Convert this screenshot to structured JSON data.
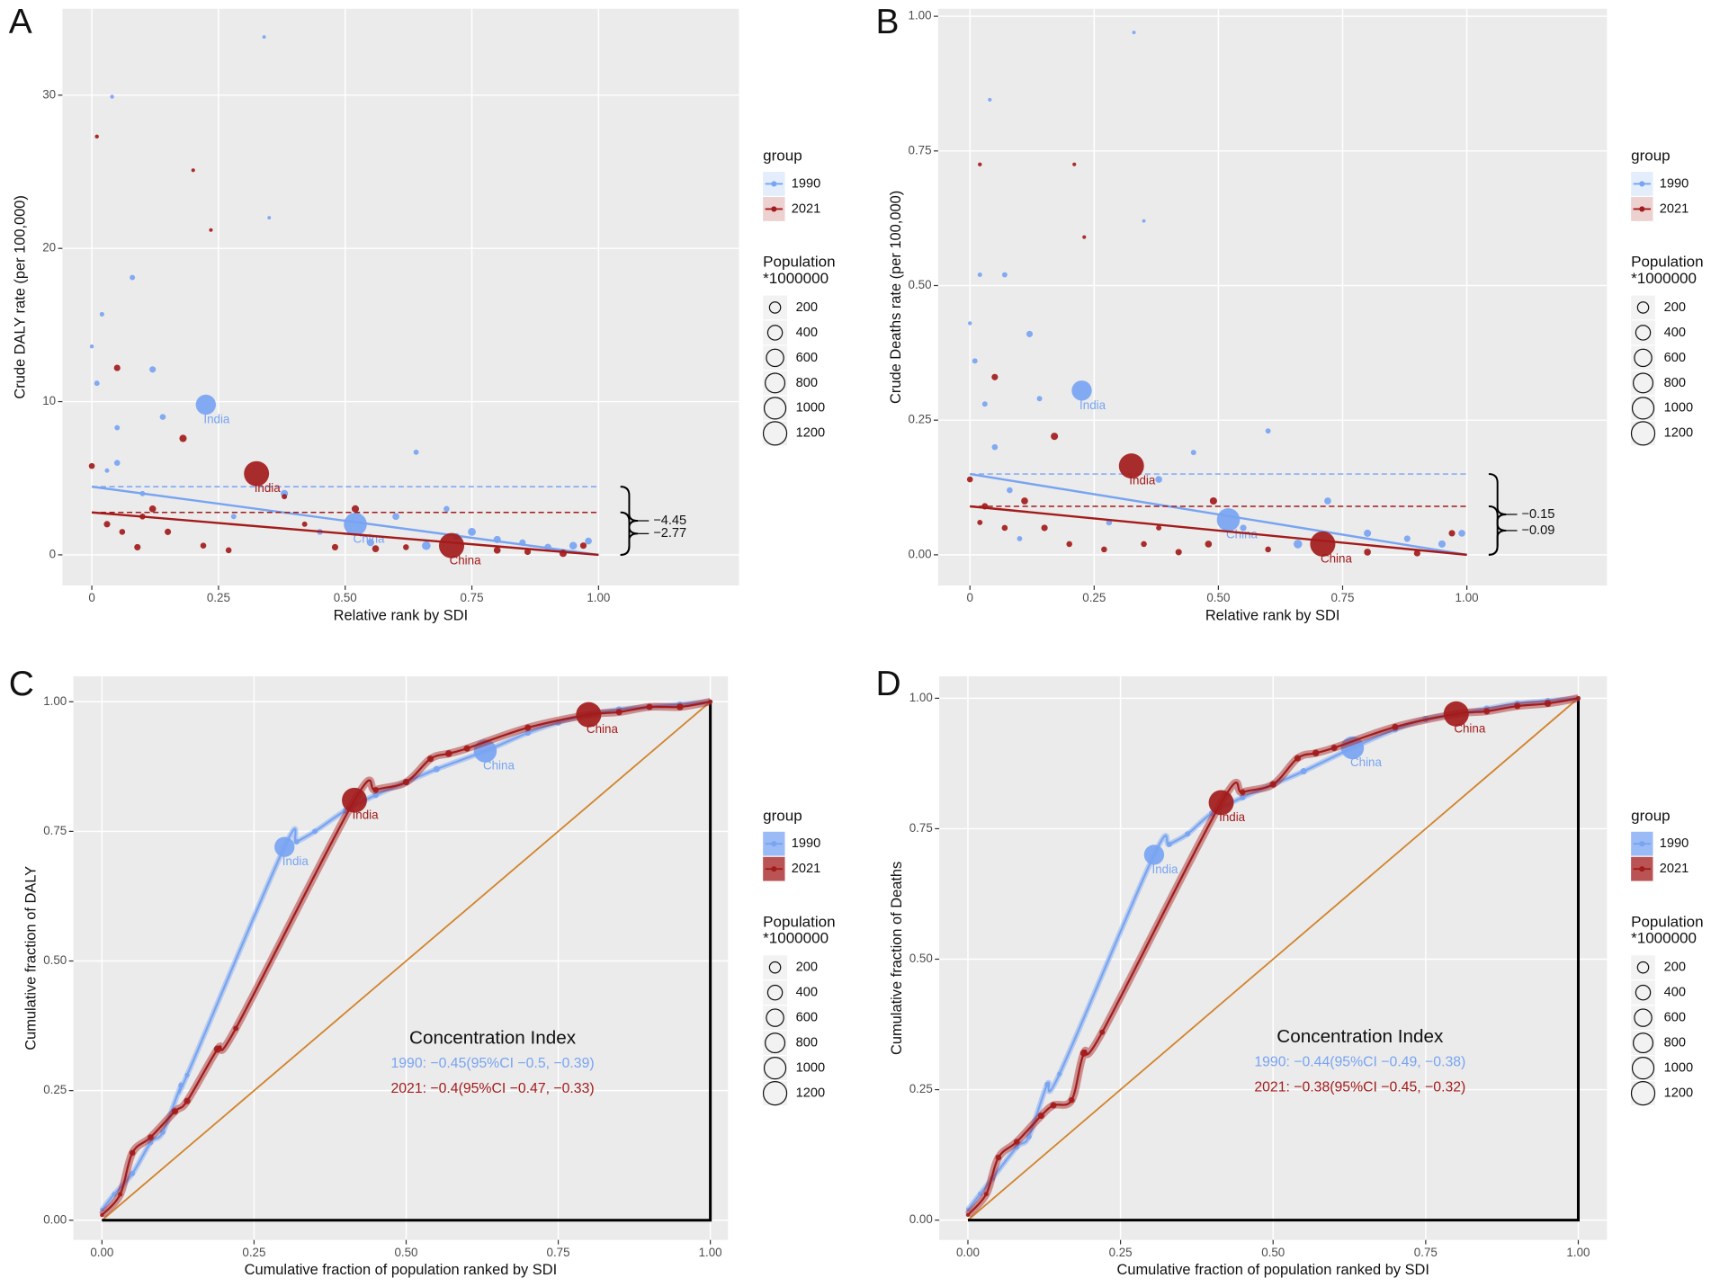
{
  "chart_data": [
    {
      "type": "scatter",
      "panel_label": "A",
      "ylabel": "Crude DALY rate (per 100,000)",
      "xlabel": "Relative rank by SDI",
      "xlim": [
        -0.058,
        1.277
      ],
      "ylim": [
        -2,
        35.64
      ],
      "xticks": [
        0,
        0.25,
        {
          "value": 0.5,
          "label": "0.50"
        },
        0.75,
        {
          "value": 1,
          "label": "1.00"
        }
      ],
      "yticks": [
        0,
        10,
        20,
        30
      ],
      "grid": true,
      "legend_title": "group",
      "size_legend": {
        "title": [
          "Population",
          "*1000000"
        ],
        "values": [
          200,
          400,
          600,
          800,
          1000,
          1200
        ]
      },
      "slope_index": {
        "values": [
          -4.45,
          -2.77
        ],
        "value_labels": [
          "−4.45",
          "−2.77"
        ]
      },
      "series": [
        {
          "name": "1990",
          "color": "#78a4f2",
          "x": [
            0.0,
            0.01,
            0.02,
            0.03,
            0.04,
            0.05,
            0.05,
            0.08,
            0.1,
            0.12,
            0.14,
            0.225,
            0.28,
            0.34,
            0.35,
            0.38,
            0.45,
            0.52,
            0.55,
            0.6,
            0.64,
            0.66,
            0.7,
            0.72,
            0.75,
            0.8,
            0.85,
            0.9,
            0.95,
            0.98
          ],
          "values": [
            13.6,
            11.2,
            15.7,
            5.5,
            29.9,
            8.3,
            6.0,
            18.1,
            4.0,
            12.1,
            9.0,
            9.8,
            2.5,
            33.8,
            22.0,
            4.0,
            1.5,
            2.0,
            0.8,
            2.5,
            6.7,
            0.6,
            3.0,
            1.2,
            1.5,
            1.0,
            0.8,
            0.5,
            0.6,
            0.9
          ],
          "size": [
            5,
            20,
            10,
            10,
            5,
            20,
            30,
            20,
            20,
            40,
            30,
            850,
            20,
            2,
            2,
            60,
            30,
            1150,
            60,
            50,
            20,
            100,
            30,
            40,
            80,
            60,
            40,
            50,
            70,
            50
          ],
          "point_labels": [
            null,
            null,
            null,
            null,
            null,
            null,
            null,
            null,
            null,
            null,
            null,
            "India",
            null,
            null,
            null,
            null,
            null,
            "China",
            null,
            null,
            null,
            null,
            null,
            null,
            null,
            null,
            null,
            null,
            null,
            null
          ]
        },
        {
          "name": "2021",
          "color": "#a31b1b",
          "x": [
            0.0,
            0.01,
            0.03,
            0.05,
            0.06,
            0.09,
            0.1,
            0.12,
            0.15,
            0.18,
            0.2,
            0.22,
            0.235,
            0.27,
            0.325,
            0.38,
            0.42,
            0.48,
            0.52,
            0.56,
            0.62,
            0.71,
            0.8,
            0.86,
            0.93,
            0.97
          ],
          "values": [
            5.8,
            27.3,
            2.0,
            12.2,
            1.5,
            0.5,
            2.5,
            3.0,
            1.5,
            7.6,
            25.1,
            0.6,
            21.2,
            0.3,
            5.3,
            3.8,
            2.0,
            0.5,
            3.0,
            0.4,
            0.5,
            0.6,
            0.3,
            0.2,
            0.1,
            0.6
          ],
          "size": [
            30,
            5,
            40,
            40,
            30,
            40,
            30,
            50,
            40,
            60,
            3,
            30,
            3,
            30,
            1400,
            20,
            20,
            40,
            60,
            50,
            30,
            1420,
            50,
            40,
            60,
            40
          ],
          "point_labels": [
            null,
            null,
            null,
            null,
            null,
            null,
            null,
            null,
            null,
            null,
            null,
            null,
            null,
            null,
            "India",
            null,
            null,
            null,
            null,
            null,
            null,
            "China",
            null,
            null,
            null,
            null
          ]
        }
      ]
    },
    {
      "type": "scatter",
      "panel_label": "B",
      "ylabel": "Crude Deaths rate (per 100,000)",
      "xlabel": "Relative rank by SDI",
      "xlim": [
        -0.064,
        1.282
      ],
      "ylim": [
        -0.057,
        1.014
      ],
      "xticks": [
        0,
        0.25,
        {
          "value": 0.5,
          "label": "0.50"
        },
        0.75,
        {
          "value": 1,
          "label": "1.00"
        }
      ],
      "yticks": [
        {
          "value": 0,
          "label": "0.00"
        },
        0.25,
        {
          "value": 0.5,
          "label": "0.50"
        },
        0.75,
        {
          "value": 1,
          "label": "1.00"
        }
      ],
      "grid": true,
      "legend_title": "group",
      "size_legend": {
        "title": [
          "Population",
          "*1000000"
        ],
        "values": [
          200,
          400,
          600,
          800,
          1000,
          1200
        ]
      },
      "slope_index": {
        "values": [
          -0.15,
          -0.09
        ],
        "value_labels": [
          "−0.15",
          "−0.09"
        ]
      },
      "series": [
        {
          "name": "1990",
          "color": "#78a4f2",
          "x": [
            0.0,
            0.01,
            0.02,
            0.03,
            0.04,
            0.05,
            0.07,
            0.08,
            0.1,
            0.12,
            0.14,
            0.225,
            0.28,
            0.33,
            0.35,
            0.38,
            0.45,
            0.52,
            0.55,
            0.6,
            0.66,
            0.72,
            0.8,
            0.88,
            0.95,
            0.99
          ],
          "values": [
            0.43,
            0.36,
            0.52,
            0.28,
            0.845,
            0.2,
            0.52,
            0.12,
            0.03,
            0.41,
            0.29,
            0.305,
            0.06,
            0.97,
            0.62,
            0.14,
            0.19,
            0.065,
            0.05,
            0.23,
            0.02,
            0.1,
            0.04,
            0.03,
            0.02,
            0.04
          ],
          "size": [
            5,
            20,
            10,
            20,
            3,
            30,
            20,
            30,
            20,
            40,
            20,
            850,
            30,
            2,
            2,
            50,
            20,
            1150,
            40,
            20,
            100,
            50,
            60,
            40,
            60,
            50
          ],
          "point_labels": [
            null,
            null,
            null,
            null,
            null,
            null,
            null,
            null,
            null,
            null,
            null,
            "India",
            null,
            null,
            null,
            null,
            null,
            "China",
            null,
            null,
            null,
            null,
            null,
            null,
            null,
            null
          ]
        },
        {
          "name": "2021",
          "color": "#a31b1b",
          "x": [
            0.0,
            0.02,
            0.02,
            0.03,
            0.05,
            0.07,
            0.11,
            0.15,
            0.17,
            0.2,
            0.21,
            0.23,
            0.27,
            0.325,
            0.35,
            0.38,
            0.42,
            0.48,
            0.49,
            0.6,
            0.71,
            0.8,
            0.9,
            0.97
          ],
          "values": [
            0.14,
            0.725,
            0.06,
            0.09,
            0.33,
            0.05,
            0.1,
            0.05,
            0.22,
            0.02,
            0.725,
            0.59,
            0.01,
            0.165,
            0.02,
            0.05,
            0.005,
            0.02,
            0.1,
            0.01,
            0.02,
            0.005,
            0.003,
            0.04
          ],
          "size": [
            30,
            5,
            20,
            40,
            40,
            30,
            50,
            40,
            60,
            30,
            3,
            3,
            30,
            1400,
            30,
            20,
            40,
            50,
            60,
            30,
            1420,
            50,
            40,
            40
          ],
          "point_labels": [
            null,
            null,
            null,
            null,
            null,
            null,
            null,
            null,
            null,
            null,
            null,
            null,
            null,
            "India",
            null,
            null,
            null,
            null,
            null,
            null,
            "China",
            null,
            null,
            null
          ]
        }
      ]
    },
    {
      "type": "lorenz",
      "panel_label": "C",
      "ylabel": "Cumulative fraction of DALY",
      "xlabel": "Cumulative fraction of population ranked by SDI",
      "xlim": [
        -0.047,
        1.029
      ],
      "ylim": [
        -0.038,
        1.049
      ],
      "xticks": [
        {
          "value": 0,
          "label": "0.00"
        },
        0.25,
        {
          "value": 0.5,
          "label": "0.50"
        },
        0.75,
        {
          "value": 1,
          "label": "1.00"
        }
      ],
      "yticks": [
        {
          "value": 0,
          "label": "0.00"
        },
        0.25,
        {
          "value": 0.5,
          "label": "0.50"
        },
        0.75,
        {
          "value": 1,
          "label": "1.00"
        }
      ],
      "grid": true,
      "legend_title": "group",
      "size_legend": {
        "title": [
          "Population",
          "*1000000"
        ],
        "values": [
          200,
          400,
          600,
          800,
          1000,
          1200
        ]
      },
      "concentration_index": {
        "title": "Concentration Index",
        "lines": [
          "1990: −0.45(95%CI −0.5, −0.39)",
          "2021: −0.4(95%CI −0.47, −0.33)"
        ]
      },
      "series": [
        {
          "name": "1990",
          "color": "#78a4f2",
          "x": [
            0.0,
            0.02,
            0.05,
            0.08,
            0.1,
            0.13,
            0.14,
            0.3,
            0.32,
            0.35,
            0.4,
            0.45,
            0.5,
            0.55,
            0.63,
            0.7,
            0.75,
            0.8,
            0.85,
            0.9,
            0.95,
            1.0
          ],
          "values": [
            0.02,
            0.05,
            0.09,
            0.15,
            0.17,
            0.26,
            0.28,
            0.72,
            0.73,
            0.75,
            0.79,
            0.82,
            0.845,
            0.87,
            0.905,
            0.94,
            0.96,
            0.975,
            0.985,
            0.99,
            0.995,
            1.0
          ],
          "size": [
            5,
            10,
            20,
            20,
            20,
            20,
            10,
            850,
            20,
            20,
            30,
            30,
            40,
            40,
            1150,
            30,
            40,
            40,
            40,
            30,
            30,
            10
          ],
          "point_labels": [
            null,
            null,
            null,
            null,
            null,
            null,
            null,
            "India",
            null,
            null,
            null,
            null,
            null,
            null,
            "China",
            null,
            null,
            null,
            null,
            null,
            null,
            null
          ]
        },
        {
          "name": "2021",
          "color": "#a31b1b",
          "x": [
            0.0,
            0.03,
            0.05,
            0.08,
            0.12,
            0.14,
            0.19,
            0.22,
            0.415,
            0.45,
            0.5,
            0.54,
            0.57,
            0.6,
            0.7,
            0.8,
            0.85,
            0.9,
            0.95,
            1.0
          ],
          "values": [
            0.01,
            0.05,
            0.13,
            0.16,
            0.21,
            0.23,
            0.33,
            0.37,
            0.81,
            0.83,
            0.845,
            0.89,
            0.9,
            0.91,
            0.95,
            0.975,
            0.98,
            0.99,
            0.99,
            1.0
          ],
          "size": [
            5,
            10,
            30,
            30,
            40,
            40,
            60,
            20,
            1400,
            30,
            40,
            40,
            50,
            40,
            40,
            1420,
            40,
            40,
            50,
            10
          ],
          "point_labels": [
            null,
            null,
            null,
            null,
            null,
            null,
            null,
            null,
            "India",
            null,
            null,
            null,
            null,
            null,
            null,
            "China",
            null,
            null,
            null,
            null
          ]
        }
      ]
    },
    {
      "type": "lorenz",
      "panel_label": "D",
      "ylabel": "Cumulative fraction of Deaths",
      "xlabel": "Cumulative fraction of population ranked by SDI",
      "xlim": [
        -0.047,
        1.047
      ],
      "ylim": [
        -0.038,
        1.042
      ],
      "xticks": [
        {
          "value": 0,
          "label": "0.00"
        },
        0.25,
        {
          "value": 0.5,
          "label": "0.50"
        },
        0.75,
        {
          "value": 1,
          "label": "1.00"
        }
      ],
      "yticks": [
        {
          "value": 0,
          "label": "0.00"
        },
        0.25,
        {
          "value": 0.5,
          "label": "0.50"
        },
        0.75,
        {
          "value": 1,
          "label": "1.00"
        }
      ],
      "grid": true,
      "legend_title": "group",
      "size_legend": {
        "title": [
          "Population",
          "*1000000"
        ],
        "values": [
          200,
          400,
          600,
          800,
          1000,
          1200
        ]
      },
      "concentration_index": {
        "title": "Concentration Index",
        "lines": [
          "1990: −0.44(95%CI −0.49, −0.38)",
          "2021: −0.38(95%CI −0.45, −0.32)"
        ]
      },
      "series": [
        {
          "name": "1990",
          "color": "#78a4f2",
          "x": [
            0.0,
            0.02,
            0.04,
            0.08,
            0.1,
            0.13,
            0.15,
            0.305,
            0.33,
            0.36,
            0.4,
            0.45,
            0.5,
            0.55,
            0.63,
            0.7,
            0.75,
            0.8,
            0.85,
            0.9,
            0.95,
            1.0
          ],
          "values": [
            0.02,
            0.05,
            0.08,
            0.14,
            0.16,
            0.26,
            0.28,
            0.7,
            0.72,
            0.74,
            0.78,
            0.81,
            0.835,
            0.86,
            0.905,
            0.94,
            0.96,
            0.97,
            0.98,
            0.99,
            0.995,
            1.0
          ],
          "size": [
            5,
            10,
            20,
            20,
            20,
            20,
            10,
            850,
            20,
            20,
            30,
            30,
            40,
            40,
            1150,
            30,
            40,
            40,
            40,
            30,
            30,
            10
          ],
          "point_labels": [
            null,
            null,
            null,
            null,
            null,
            null,
            null,
            "India",
            null,
            null,
            null,
            null,
            null,
            null,
            "China",
            null,
            null,
            null,
            null,
            null,
            null,
            null
          ]
        },
        {
          "name": "2021",
          "color": "#a31b1b",
          "x": [
            0.0,
            0.03,
            0.05,
            0.08,
            0.12,
            0.14,
            0.17,
            0.19,
            0.22,
            0.415,
            0.45,
            0.5,
            0.54,
            0.57,
            0.6,
            0.7,
            0.8,
            0.85,
            0.9,
            0.95,
            1.0
          ],
          "values": [
            0.01,
            0.05,
            0.12,
            0.15,
            0.2,
            0.22,
            0.23,
            0.32,
            0.36,
            0.8,
            0.82,
            0.835,
            0.885,
            0.895,
            0.905,
            0.945,
            0.97,
            0.975,
            0.985,
            0.99,
            1.0
          ],
          "size": [
            5,
            10,
            30,
            30,
            40,
            40,
            30,
            60,
            20,
            1400,
            30,
            40,
            40,
            50,
            40,
            40,
            1420,
            40,
            40,
            50,
            10
          ],
          "point_labels": [
            null,
            null,
            null,
            null,
            null,
            null,
            null,
            null,
            null,
            "India",
            null,
            null,
            null,
            null,
            null,
            null,
            "China",
            null,
            null,
            null,
            null
          ]
        }
      ]
    }
  ]
}
